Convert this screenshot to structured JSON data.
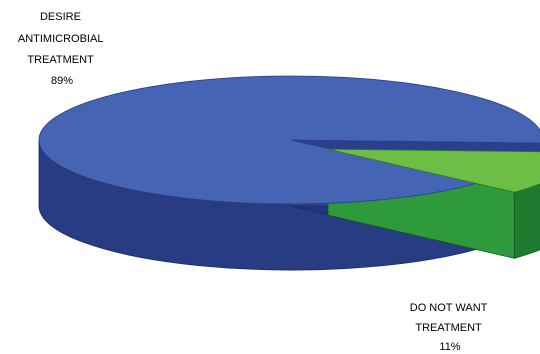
{
  "chart_data": {
    "type": "pie",
    "title": "",
    "slices": [
      {
        "label_lines": [
          "DESIRE",
          "ANTIMICROBIAL",
          "TREATMENT"
        ],
        "value": 89,
        "value_label": "89%",
        "color": "#4664B4",
        "side_color": "#283C84",
        "exploded": false
      },
      {
        "label_lines": [
          "DO NOT WANT",
          "TREATMENT"
        ],
        "value": 11,
        "value_label": "11%",
        "color": "#6CBE46",
        "side_color": "#1E7A2E",
        "exploded": true
      }
    ],
    "legend": "none",
    "style": "3d-exploded"
  }
}
